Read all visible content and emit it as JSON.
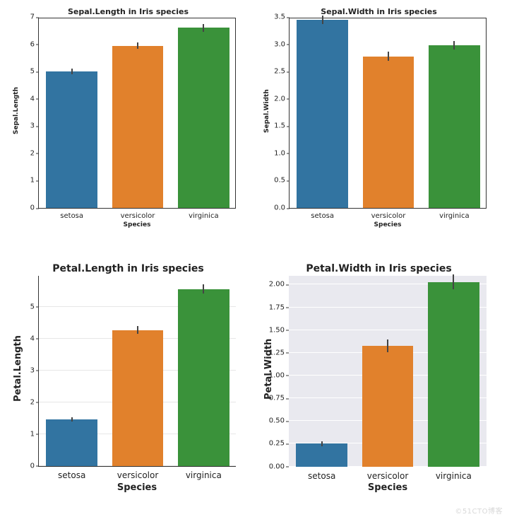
{
  "watermark": "©51CTO博客",
  "colors": {
    "setosa": "#3274a1",
    "versicolor": "#e1812c",
    "virginica": "#3a923a",
    "errorbar": "#444444",
    "axes": "#000000",
    "grid_light": "#e6e6e6",
    "grid_grey": "#ffffff",
    "bg_white": "#ffffff",
    "bg_grey": "#e9e9ef"
  },
  "categories": [
    "setosa",
    "versicolor",
    "virginica"
  ],
  "panels": [
    {
      "id": "sepal-length",
      "title": "Sepal.Length in Iris species",
      "title_size": "small",
      "ylabel": "Sepal.Length",
      "ylabel_size": 9,
      "xlabel": "Species",
      "xlabel_size": 9,
      "style": "white_box",
      "bar_width": 0.78,
      "values": [
        5.0,
        5.95,
        6.6
      ],
      "errors": [
        0.1,
        0.12,
        0.15
      ],
      "ylim": [
        0,
        7
      ],
      "yticks": [
        0,
        1,
        2,
        3,
        4,
        5,
        6,
        7
      ],
      "ytick_labels": [
        "0",
        "1",
        "2",
        "3",
        "4",
        "5",
        "6",
        "7"
      ],
      "xtick_size": "small",
      "grid": false,
      "plot_bg": "white"
    },
    {
      "id": "sepal-width",
      "title": "Sepal.Width in Iris species",
      "title_size": "small",
      "ylabel": "Sepal.Width",
      "ylabel_size": 9,
      "xlabel": "Species",
      "xlabel_size": 9,
      "style": "white_box",
      "bar_width": 0.78,
      "values": [
        3.45,
        2.78,
        2.98
      ],
      "errors": [
        0.08,
        0.08,
        0.08
      ],
      "ylim": [
        0,
        3.5
      ],
      "yticks": [
        0,
        0.5,
        1,
        1.5,
        2,
        2.5,
        3,
        3.5
      ],
      "ytick_labels": [
        "0.0",
        "0.5",
        "1.0",
        "1.5",
        "2.0",
        "2.5",
        "3.0",
        "3.5"
      ],
      "xtick_size": "small",
      "grid": false,
      "plot_bg": "white"
    },
    {
      "id": "petal-length",
      "title": "Petal.Length in Iris species",
      "title_size": "big",
      "ylabel": "Petal.Length",
      "ylabel_size": 13,
      "xlabel": "Species",
      "xlabel_size": 13,
      "style": "white_open",
      "bar_width": 0.78,
      "values": [
        1.46,
        4.26,
        5.55
      ],
      "errors": [
        0.06,
        0.12,
        0.14
      ],
      "ylim": [
        0,
        6
      ],
      "yticks": [
        0,
        1,
        2,
        3,
        4,
        5
      ],
      "ytick_labels": [
        "0",
        "1",
        "2",
        "3",
        "4",
        "5"
      ],
      "xtick_size": "big",
      "grid": true,
      "grid_color": "#e6e6e6",
      "plot_bg": "white"
    },
    {
      "id": "petal-width",
      "title": "Petal.Width in Iris species",
      "title_size": "big",
      "ylabel": "Petal.Width",
      "ylabel_size": 13,
      "xlabel": "Species",
      "xlabel_size": 13,
      "style": "grey",
      "bar_width": 0.78,
      "values": [
        0.25,
        1.33,
        2.03
      ],
      "errors": [
        0.03,
        0.07,
        0.08
      ],
      "ylim": [
        0,
        2.1
      ],
      "yticks": [
        0,
        0.25,
        0.5,
        0.75,
        1.0,
        1.25,
        1.5,
        1.75,
        2.0
      ],
      "ytick_labels": [
        "0.00",
        "0.25",
        "0.50",
        "0.75",
        "1.00",
        "1.25",
        "1.50",
        "1.75",
        "2.00"
      ],
      "xtick_size": "big",
      "grid": true,
      "grid_color": "#ffffff",
      "plot_bg": "grey"
    }
  ]
}
